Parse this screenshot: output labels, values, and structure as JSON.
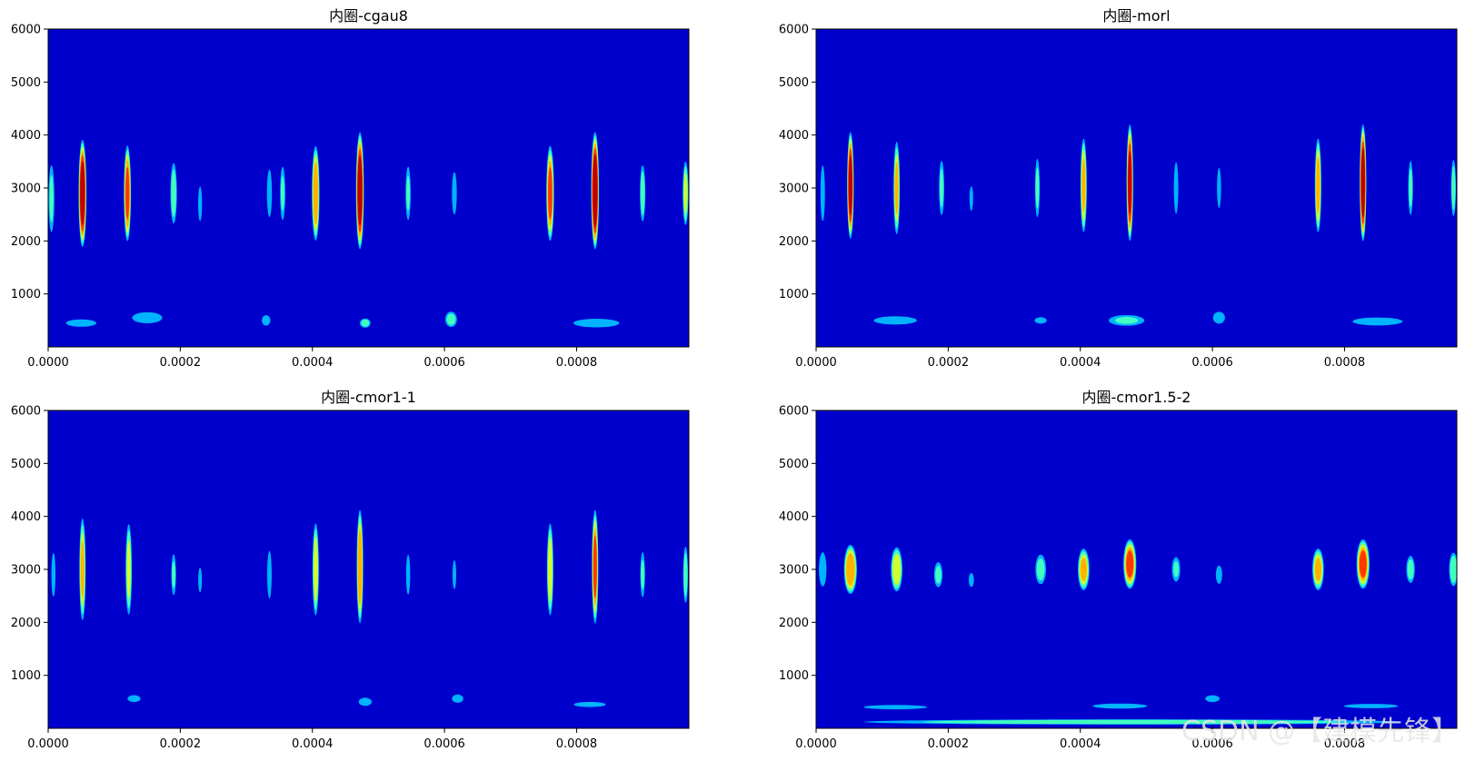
{
  "figure": {
    "watermark": "CSDN @【建模先锋】"
  },
  "chart_data": [
    {
      "type": "heatmap",
      "title": "内圈-cgau8",
      "xlim": [
        0,
        0.00097
      ],
      "ylim": [
        0,
        6000
      ],
      "x_ticks": [
        "0.0000",
        "0.0002",
        "0.0004",
        "0.0006",
        "0.0008"
      ],
      "x_tick_values": [
        0,
        0.0002,
        0.0004,
        0.0006,
        0.0008
      ],
      "y_ticks": [
        "1000",
        "2000",
        "3000",
        "4000",
        "5000",
        "6000"
      ],
      "y_tick_values": [
        1000,
        2000,
        3000,
        4000,
        5000,
        6000
      ],
      "colormap": "jet",
      "background_color": "#0000cd",
      "blobs": [
        {
          "t": 5.2e-05,
          "f": 2900,
          "w": 6.5e-06,
          "h": 1100,
          "level": 0.95
        },
        {
          "t": 0.00012,
          "f": 2900,
          "w": 6e-06,
          "h": 1000,
          "level": 0.78
        },
        {
          "t": 0.00019,
          "f": 2900,
          "w": 6e-06,
          "h": 700,
          "level": 0.45
        },
        {
          "t": 5e-06,
          "f": 2800,
          "w": 5.5e-06,
          "h": 800,
          "level": 0.4
        },
        {
          "t": 0.00023,
          "f": 2700,
          "w": 4.5e-06,
          "h": 500,
          "level": 0.28
        },
        {
          "t": 0.000335,
          "f": 2900,
          "w": 5e-06,
          "h": 600,
          "level": 0.35
        },
        {
          "t": 0.000355,
          "f": 2900,
          "w": 5e-06,
          "h": 650,
          "level": 0.38
        },
        {
          "t": 0.000405,
          "f": 2900,
          "w": 6.5e-06,
          "h": 1000,
          "level": 0.72
        },
        {
          "t": 0.000472,
          "f": 2950,
          "w": 6.5e-06,
          "h": 1200,
          "level": 0.95
        },
        {
          "t": 0.000545,
          "f": 2900,
          "w": 5e-06,
          "h": 650,
          "level": 0.38
        },
        {
          "t": 0.000615,
          "f": 2900,
          "w": 5e-06,
          "h": 550,
          "level": 0.33
        },
        {
          "t": 0.00076,
          "f": 2900,
          "w": 6.5e-06,
          "h": 1000,
          "level": 0.75
        },
        {
          "t": 0.000828,
          "f": 2950,
          "w": 6.5e-06,
          "h": 1200,
          "level": 0.98
        },
        {
          "t": 0.0009,
          "f": 2900,
          "w": 5e-06,
          "h": 650,
          "level": 0.45
        },
        {
          "t": 0.000965,
          "f": 2900,
          "w": 5e-06,
          "h": 700,
          "level": 0.55
        },
        {
          "t": 5e-05,
          "f": 450,
          "w": 4e-05,
          "h": 120,
          "level": 0.25
        },
        {
          "t": 0.00015,
          "f": 550,
          "w": 3.5e-05,
          "h": 160,
          "level": 0.28
        },
        {
          "t": 0.00033,
          "f": 500,
          "w": 1e-05,
          "h": 150,
          "level": 0.28
        },
        {
          "t": 0.00048,
          "f": 450,
          "w": 1e-05,
          "h": 110,
          "level": 0.42
        },
        {
          "t": 0.00061,
          "f": 520,
          "w": 1.1e-05,
          "h": 180,
          "level": 0.42
        },
        {
          "t": 0.00083,
          "f": 450,
          "w": 5.5e-05,
          "h": 130,
          "level": 0.27
        }
      ]
    },
    {
      "type": "heatmap",
      "title": "内圈-morl",
      "xlim": [
        0,
        0.00097
      ],
      "ylim": [
        0,
        6000
      ],
      "x_ticks": [
        "0.0000",
        "0.0002",
        "0.0004",
        "0.0006",
        "0.0008"
      ],
      "x_tick_values": [
        0,
        0.0002,
        0.0004,
        0.0006,
        0.0008
      ],
      "y_ticks": [
        "1000",
        "2000",
        "3000",
        "4000",
        "5000",
        "6000"
      ],
      "y_tick_values": [
        1000,
        2000,
        3000,
        4000,
        5000,
        6000
      ],
      "colormap": "jet",
      "background_color": "#0000cd",
      "blobs": [
        {
          "t": 5.2e-05,
          "f": 3050,
          "w": 5.5e-06,
          "h": 1100,
          "level": 0.92
        },
        {
          "t": 0.000122,
          "f": 3000,
          "w": 5.5e-06,
          "h": 1000,
          "level": 0.62
        },
        {
          "t": 0.00019,
          "f": 3000,
          "w": 5e-06,
          "h": 650,
          "level": 0.4
        },
        {
          "t": 1e-05,
          "f": 2900,
          "w": 4.5e-06,
          "h": 700,
          "level": 0.35
        },
        {
          "t": 0.000235,
          "f": 2800,
          "w": 4e-06,
          "h": 400,
          "level": 0.25
        },
        {
          "t": 0.000335,
          "f": 3000,
          "w": 4.5e-06,
          "h": 700,
          "level": 0.4
        },
        {
          "t": 0.000405,
          "f": 3050,
          "w": 5.5e-06,
          "h": 1000,
          "level": 0.66
        },
        {
          "t": 0.000475,
          "f": 3100,
          "w": 5.5e-06,
          "h": 1200,
          "level": 0.9
        },
        {
          "t": 0.000545,
          "f": 3000,
          "w": 4.5e-06,
          "h": 650,
          "level": 0.35
        },
        {
          "t": 0.00061,
          "f": 3000,
          "w": 4.5e-06,
          "h": 550,
          "level": 0.3
        },
        {
          "t": 0.00076,
          "f": 3050,
          "w": 5.5e-06,
          "h": 1000,
          "level": 0.68
        },
        {
          "t": 0.000828,
          "f": 3100,
          "w": 5.5e-06,
          "h": 1200,
          "level": 0.95
        },
        {
          "t": 0.0009,
          "f": 3000,
          "w": 4.5e-06,
          "h": 650,
          "level": 0.4
        },
        {
          "t": 0.000965,
          "f": 3000,
          "w": 4.5e-06,
          "h": 650,
          "level": 0.45
        },
        {
          "t": 0.00012,
          "f": 500,
          "w": 5e-05,
          "h": 120,
          "level": 0.28
        },
        {
          "t": 0.00034,
          "f": 500,
          "w": 1.5e-05,
          "h": 100,
          "level": 0.26
        },
        {
          "t": 0.00047,
          "f": 500,
          "w": 3.5e-05,
          "h": 130,
          "level": 0.38
        },
        {
          "t": 0.00061,
          "f": 550,
          "w": 1.2e-05,
          "h": 150,
          "level": 0.35
        },
        {
          "t": 0.00085,
          "f": 480,
          "w": 6e-05,
          "h": 120,
          "level": 0.27
        }
      ]
    },
    {
      "type": "heatmap",
      "title": "内圈-cmor1-1",
      "xlim": [
        0,
        0.00097
      ],
      "ylim": [
        0,
        6000
      ],
      "x_ticks": [
        "0.0000",
        "0.0002",
        "0.0004",
        "0.0006",
        "0.0008"
      ],
      "x_tick_values": [
        0,
        0.0002,
        0.0004,
        0.0006,
        0.0008
      ],
      "y_ticks": [
        "1000",
        "2000",
        "3000",
        "4000",
        "5000",
        "6000"
      ],
      "y_tick_values": [
        1000,
        2000,
        3000,
        4000,
        5000,
        6000
      ],
      "colormap": "jet",
      "background_color": "#0000cd",
      "blobs": [
        {
          "t": 5.2e-05,
          "f": 3000,
          "w": 5.5e-06,
          "h": 1100,
          "level": 0.62
        },
        {
          "t": 0.000122,
          "f": 3000,
          "w": 5.5e-06,
          "h": 1000,
          "level": 0.55
        },
        {
          "t": 0.00019,
          "f": 2900,
          "w": 4.5e-06,
          "h": 500,
          "level": 0.38
        },
        {
          "t": 8e-06,
          "f": 2900,
          "w": 4.5e-06,
          "h": 600,
          "level": 0.3
        },
        {
          "t": 0.00023,
          "f": 2800,
          "w": 3.5e-06,
          "h": 400,
          "level": 0.25
        },
        {
          "t": 0.000335,
          "f": 2900,
          "w": 4.5e-06,
          "h": 600,
          "level": 0.35
        },
        {
          "t": 0.000405,
          "f": 3000,
          "w": 5.5e-06,
          "h": 1000,
          "level": 0.6
        },
        {
          "t": 0.000472,
          "f": 3050,
          "w": 5.5e-06,
          "h": 1200,
          "level": 0.72
        },
        {
          "t": 0.000545,
          "f": 2900,
          "w": 4.5e-06,
          "h": 550,
          "level": 0.3
        },
        {
          "t": 0.000615,
          "f": 2900,
          "w": 4e-06,
          "h": 450,
          "level": 0.26
        },
        {
          "t": 0.00076,
          "f": 3000,
          "w": 5.5e-06,
          "h": 1000,
          "level": 0.6
        },
        {
          "t": 0.000828,
          "f": 3050,
          "w": 5.5e-06,
          "h": 1200,
          "level": 0.74
        },
        {
          "t": 0.0009,
          "f": 2900,
          "w": 4.5e-06,
          "h": 550,
          "level": 0.38
        },
        {
          "t": 0.000965,
          "f": 2900,
          "w": 4.5e-06,
          "h": 650,
          "level": 0.45
        },
        {
          "t": 0.00013,
          "f": 560,
          "w": 1.5e-05,
          "h": 100,
          "level": 0.28
        },
        {
          "t": 0.00048,
          "f": 500,
          "w": 1.5e-05,
          "h": 120,
          "level": 0.28
        },
        {
          "t": 0.00062,
          "f": 560,
          "w": 1.2e-05,
          "h": 110,
          "level": 0.32
        },
        {
          "t": 0.00082,
          "f": 450,
          "w": 4e-05,
          "h": 80,
          "level": 0.26
        }
      ]
    },
    {
      "type": "heatmap",
      "title": "内圈-cmor1.5-2",
      "xlim": [
        0,
        0.00097
      ],
      "ylim": [
        0,
        6000
      ],
      "x_ticks": [
        "0.0000",
        "0.0002",
        "0.0004",
        "0.0006",
        "0.0008"
      ],
      "x_tick_values": [
        0,
        0.0002,
        0.0004,
        0.0006,
        0.0008
      ],
      "y_ticks": [
        "1000",
        "2000",
        "3000",
        "4000",
        "5000",
        "6000"
      ],
      "y_tick_values": [
        1000,
        2000,
        3000,
        4000,
        5000,
        6000
      ],
      "colormap": "jet",
      "background_color": "#0000cd",
      "blobs": [
        {
          "t": 5.2e-05,
          "f": 3000,
          "w": 1.1e-05,
          "h": 520,
          "level": 0.72
        },
        {
          "t": 0.000122,
          "f": 3000,
          "w": 1e-05,
          "h": 480,
          "level": 0.6
        },
        {
          "t": 0.000185,
          "f": 2900,
          "w": 8e-06,
          "h": 300,
          "level": 0.4
        },
        {
          "t": 1e-05,
          "f": 3000,
          "w": 8e-06,
          "h": 450,
          "level": 0.32
        },
        {
          "t": 0.000235,
          "f": 2800,
          "w": 6e-06,
          "h": 200,
          "level": 0.28
        },
        {
          "t": 0.00034,
          "f": 3000,
          "w": 1e-05,
          "h": 350,
          "level": 0.42
        },
        {
          "t": 0.000405,
          "f": 3000,
          "w": 1e-05,
          "h": 450,
          "level": 0.62
        },
        {
          "t": 0.000475,
          "f": 3100,
          "w": 1.1e-05,
          "h": 520,
          "level": 0.74
        },
        {
          "t": 0.000545,
          "f": 3000,
          "w": 8e-06,
          "h": 300,
          "level": 0.38
        },
        {
          "t": 0.00061,
          "f": 2900,
          "w": 7e-06,
          "h": 250,
          "level": 0.3
        },
        {
          "t": 0.00076,
          "f": 3000,
          "w": 1e-05,
          "h": 450,
          "level": 0.62
        },
        {
          "t": 0.000828,
          "f": 3100,
          "w": 1.1e-05,
          "h": 520,
          "level": 0.74
        },
        {
          "t": 0.0009,
          "f": 3000,
          "w": 8e-06,
          "h": 320,
          "level": 0.42
        },
        {
          "t": 0.000965,
          "f": 3000,
          "w": 8e-06,
          "h": 380,
          "level": 0.48
        },
        {
          "t": 0.00012,
          "f": 400,
          "w": 7e-05,
          "h": 60,
          "level": 0.3
        },
        {
          "t": 0.00046,
          "f": 420,
          "w": 6e-05,
          "h": 70,
          "level": 0.3
        },
        {
          "t": 0.0006,
          "f": 560,
          "w": 1.5e-05,
          "h": 90,
          "level": 0.32
        },
        {
          "t": 0.00084,
          "f": 420,
          "w": 6e-05,
          "h": 60,
          "level": 0.3
        },
        {
          "t": 0.00048,
          "f": 120,
          "w": 0.0005,
          "h": 60,
          "level": 0.45
        }
      ]
    }
  ]
}
